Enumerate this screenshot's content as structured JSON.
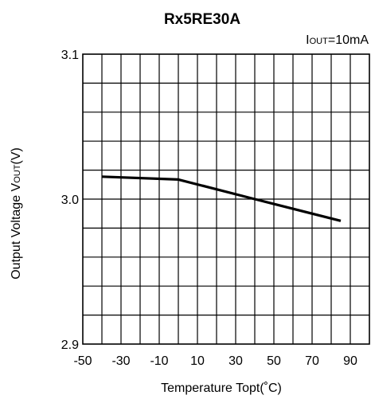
{
  "chart_data": {
    "type": "line",
    "title": "Rx5RE30A",
    "condition": {
      "prefix": "I",
      "subscript": "OUT",
      "suffix": "=10mA"
    },
    "xlabel": "Temperature Topt(˚C)",
    "ylabel": {
      "prefix": "Output Voltage V",
      "subscript": "OUT",
      "suffix": "(V)"
    },
    "xlim": [
      -50,
      100
    ],
    "ylim": [
      2.9,
      3.1
    ],
    "x_ticks": [
      -50,
      -30,
      -10,
      10,
      30,
      50,
      70,
      90
    ],
    "x_tick_labels": [
      "-50",
      "-30",
      "-10",
      "10",
      "30",
      "50",
      "70",
      "90"
    ],
    "y_ticks": [
      2.9,
      3.0,
      3.1
    ],
    "y_tick_labels": [
      "2.9",
      "3.0",
      "3.1"
    ],
    "x_grid_step": 10,
    "y_grid_step": 0.02,
    "grid": true,
    "series": [
      {
        "x": [
          -40,
          0,
          40,
          85
        ],
        "y": [
          3.0155,
          3.0135,
          3.0,
          2.985
        ],
        "color": "#000000"
      }
    ]
  }
}
